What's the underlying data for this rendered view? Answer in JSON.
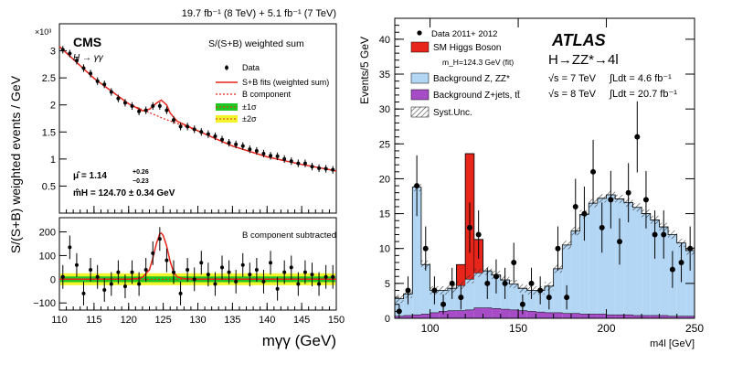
{
  "chart_data": [
    {
      "type": "scatter",
      "experiment": "CMS",
      "lumi_text": "19.7 fb⁻¹ (8 TeV) + 5.1 fb⁻¹ (7 TeV)",
      "channel": "H → γγ",
      "legend_title": "S/(S+B) weighted sum",
      "legend": [
        "Data",
        "S+B fits (weighted sum)",
        "B component",
        "±1σ",
        "±2σ"
      ],
      "mu_text": "μ̂ = 1.14",
      "mu_sup": "+0.26",
      "mu_sub": "−0.23",
      "mass_text": "m̂H = 124.70 ± 0.34 GeV",
      "scale_label": "×10³",
      "ylabel": "S/(S+B) weighted events / GeV",
      "xlabel": "mγγ (GeV)",
      "xlim": [
        110,
        150
      ],
      "xticks": [
        110,
        115,
        120,
        125,
        130,
        135,
        140,
        145,
        150
      ],
      "top_panel": {
        "ylim": [
          0.0,
          3.5
        ],
        "yticks": [
          0.5,
          1.0,
          1.5,
          2.0,
          2.5,
          3.0
        ],
        "ytick_labels": [
          "0.5",
          "1",
          "1.5",
          "2",
          "2.5",
          "3"
        ],
        "data_x": [
          110.5,
          111.5,
          112.5,
          113.5,
          114.5,
          115.5,
          116.5,
          117.5,
          118.5,
          119.5,
          120.5,
          121.5,
          122.5,
          123.5,
          124.5,
          125.5,
          126.5,
          127.5,
          128.5,
          129.5,
          130.5,
          131.5,
          132.5,
          133.5,
          134.5,
          135.5,
          136.5,
          137.5,
          138.5,
          139.5,
          140.5,
          141.5,
          142.5,
          143.5,
          144.5,
          145.5,
          146.5,
          147.5,
          148.5,
          149.5
        ],
        "data_y": [
          3.02,
          2.95,
          2.82,
          2.68,
          2.58,
          2.44,
          2.38,
          2.24,
          2.12,
          2.04,
          1.98,
          1.88,
          1.9,
          1.98,
          1.98,
          1.9,
          1.72,
          1.6,
          1.6,
          1.55,
          1.5,
          1.46,
          1.42,
          1.36,
          1.3,
          1.27,
          1.24,
          1.18,
          1.15,
          1.1,
          1.06,
          1.05,
          1.0,
          0.96,
          0.92,
          0.92,
          0.86,
          0.83,
          0.82,
          0.8
        ],
        "fit_x": [
          110,
          115,
          120,
          122,
          123,
          124,
          124.7,
          125.5,
          126,
          127,
          130,
          135,
          140,
          145,
          150
        ],
        "fit_y": [
          3.08,
          2.49,
          2.02,
          1.89,
          1.92,
          2.03,
          2.09,
          2.0,
          1.85,
          1.7,
          1.52,
          1.24,
          1.04,
          0.9,
          0.78
        ],
        "bkg_x": [
          110,
          115,
          120,
          125,
          130,
          135,
          140,
          145,
          150
        ],
        "bkg_y": [
          3.08,
          2.49,
          2.02,
          1.75,
          1.52,
          1.24,
          1.04,
          0.9,
          0.78
        ]
      },
      "bottom_panel": {
        "title": "B component subtracted",
        "ylim": [
          -130,
          260
        ],
        "yticks": [
          -100,
          0,
          100,
          200
        ],
        "ytick_labels": [
          "−100",
          "0",
          "100",
          "200"
        ],
        "data_x": [
          110.5,
          111.5,
          112.5,
          113.5,
          114.5,
          115.5,
          116.5,
          117.5,
          118.5,
          119.5,
          120.5,
          121.5,
          122.5,
          123.5,
          124.5,
          125.5,
          126.5,
          127.5,
          128.5,
          129.5,
          130.5,
          131.5,
          132.5,
          133.5,
          134.5,
          135.5,
          136.5,
          137.5,
          138.5,
          139.5,
          140.5,
          141.5,
          142.5,
          143.5,
          144.5,
          145.5,
          146.5,
          147.5,
          148.5,
          149.5
        ],
        "data_y": [
          10,
          135,
          60,
          -60,
          40,
          10,
          -45,
          -20,
          30,
          -30,
          30,
          -20,
          40,
          110,
          170,
          80,
          30,
          -60,
          40,
          0,
          70,
          20,
          -20,
          50,
          30,
          -10,
          60,
          20,
          40,
          -10,
          70,
          -40,
          30,
          50,
          -20,
          30,
          20,
          -20,
          10,
          10
        ],
        "sig_x": [
          110,
          120,
          121,
          122,
          123,
          123.5,
          124,
          124.5,
          124.7,
          125,
          125.5,
          126,
          126.5,
          127,
          128,
          130,
          150
        ],
        "sig_y": [
          0,
          0,
          2,
          8,
          40,
          90,
          150,
          192,
          195,
          185,
          140,
          75,
          30,
          10,
          2,
          0,
          0
        ]
      }
    },
    {
      "type": "bar",
      "experiment": "ATLAS",
      "channel": "H→ZZ*→4l",
      "energy_7": "√s = 7 TeV",
      "lumi_7": "∫Ldt = 4.6 fb⁻¹",
      "energy_8": "√s = 8 TeV",
      "lumi_8": "∫Ldt = 20.7 fb⁻¹",
      "legend": [
        "Data 2011+ 2012",
        "SM Higgs Boson",
        "m_H=124.3 GeV (fit)",
        "Background Z, ZZ*",
        "Background Z+jets, tt̄",
        "Syst.Unc."
      ],
      "ylabel": "Events/5 GeV",
      "xlabel": "m4l [GeV]",
      "xlim": [
        80,
        250
      ],
      "ylim": [
        0,
        43
      ],
      "xticks": [
        100,
        150,
        200,
        250
      ],
      "yticks": [
        0,
        5,
        10,
        15,
        20,
        25,
        30,
        35,
        40
      ],
      "colors": {
        "signal": "#e8251a",
        "zz": "#b3d6f5",
        "zjets": "#a64cc7",
        "data": "#000000"
      },
      "bin_edges": [
        80,
        85,
        90,
        95,
        100,
        105,
        110,
        115,
        120,
        125,
        130,
        135,
        140,
        145,
        150,
        155,
        160,
        165,
        170,
        175,
        180,
        185,
        190,
        195,
        200,
        205,
        210,
        215,
        220,
        225,
        230,
        235,
        240,
        245,
        250
      ],
      "zjets": [
        0.3,
        0.4,
        0.5,
        0.6,
        0.8,
        1.0,
        1.1,
        1.1,
        1.2,
        1.5,
        1.5,
        1.4,
        1.3,
        1.2,
        1.1,
        1.0,
        0.9,
        0.8,
        0.8,
        0.7,
        0.7,
        0.6,
        0.6,
        0.6,
        0.5,
        0.5,
        0.5,
        0.4,
        0.4,
        0.4,
        0.4,
        0.3,
        0.3,
        0.3
      ],
      "zz": [
        2.5,
        3.1,
        18.3,
        7.1,
        3.2,
        3.0,
        3.2,
        3.6,
        4.4,
        5.0,
        5.3,
        4.8,
        4.2,
        3.7,
        3.2,
        3.0,
        3.1,
        3.8,
        6.3,
        9.8,
        11.8,
        14.3,
        15.9,
        16.6,
        17.2,
        16.6,
        16.1,
        15.5,
        14.6,
        13.7,
        12.7,
        11.7,
        10.5,
        9.4
      ],
      "signal": [
        0,
        0,
        0,
        0,
        0,
        0,
        0,
        3.0,
        18.0,
        4.8,
        0,
        0,
        0,
        0,
        0,
        0,
        0,
        0,
        0,
        0,
        0,
        0,
        0,
        0,
        0,
        0,
        0,
        0,
        0,
        0,
        0,
        0,
        0,
        0
      ],
      "data_x": [
        82.5,
        87.5,
        92.5,
        97.5,
        102.5,
        107.5,
        112.5,
        117.5,
        122.5,
        127.5,
        132.5,
        137.5,
        142.5,
        147.5,
        152.5,
        157.5,
        162.5,
        167.5,
        172.5,
        177.5,
        182.5,
        187.5,
        192.5,
        197.5,
        202.5,
        207.5,
        212.5,
        217.5,
        222.5,
        227.5,
        232.5,
        237.5,
        242.5,
        247.5
      ],
      "data_y": [
        1,
        4,
        19,
        10,
        4,
        2,
        5,
        3,
        13,
        12,
        5,
        6,
        5,
        8,
        2,
        5,
        4,
        3,
        10,
        3,
        16,
        15,
        21,
        13,
        17,
        11,
        18,
        26,
        17,
        12,
        12,
        7,
        8,
        10
      ]
    }
  ]
}
